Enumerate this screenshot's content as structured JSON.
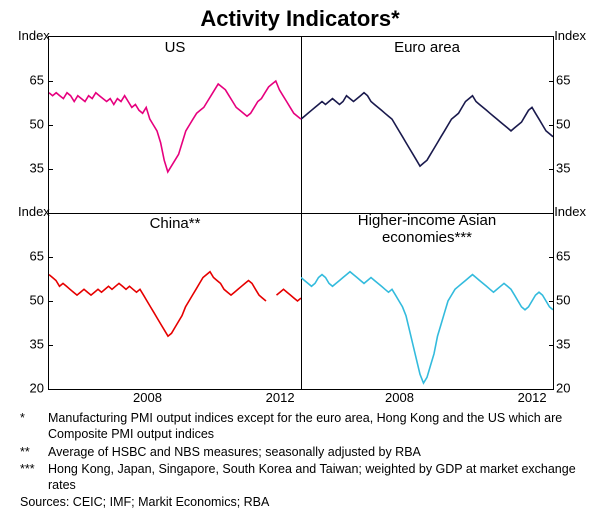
{
  "title": "Activity Indicators*",
  "axis_label": "Index",
  "panels": [
    {
      "key": "us",
      "title": "US",
      "pos": "tl",
      "color": "#e6007e",
      "data": [
        61,
        60,
        61,
        60,
        59,
        61,
        60,
        58,
        60,
        59,
        58,
        60,
        59,
        61,
        60,
        59,
        58,
        59,
        57,
        59,
        58,
        60,
        58,
        56,
        57,
        55,
        54,
        56,
        52,
        50,
        48,
        44,
        38,
        34,
        36,
        38,
        40,
        44,
        48,
        50,
        52,
        54,
        55,
        56,
        58,
        60,
        62,
        64,
        63,
        62,
        60,
        58,
        56,
        55,
        54,
        53,
        54,
        56,
        58,
        59,
        61,
        63,
        64,
        65,
        62,
        60,
        58,
        56,
        54,
        53,
        52
      ]
    },
    {
      "key": "euro",
      "title": "Euro area",
      "pos": "tr",
      "color": "#1a1a4d",
      "data": [
        52,
        53,
        54,
        55,
        56,
        57,
        58,
        57,
        58,
        59,
        58,
        57,
        58,
        60,
        59,
        58,
        59,
        60,
        61,
        60,
        58,
        57,
        56,
        55,
        54,
        53,
        52,
        50,
        48,
        46,
        44,
        42,
        40,
        38,
        36,
        37,
        38,
        40,
        42,
        44,
        46,
        48,
        50,
        52,
        53,
        54,
        56,
        58,
        59,
        60,
        58,
        57,
        56,
        55,
        54,
        53,
        52,
        51,
        50,
        49,
        48,
        49,
        50,
        51,
        53,
        55,
        56,
        54,
        52,
        50,
        48,
        47,
        46
      ]
    },
    {
      "key": "china",
      "title": "China**",
      "pos": "bl",
      "color": "#e60000",
      "data": [
        59,
        58,
        57,
        55,
        56,
        55,
        54,
        53,
        52,
        53,
        54,
        53,
        52,
        53,
        54,
        53,
        54,
        55,
        54,
        55,
        56,
        55,
        54,
        55,
        54,
        53,
        54,
        52,
        50,
        48,
        46,
        44,
        42,
        40,
        38,
        39,
        41,
        43,
        45,
        48,
        50,
        52,
        54,
        56,
        58,
        59,
        60,
        58,
        57,
        56,
        54,
        53,
        52,
        53,
        54,
        55,
        56,
        57,
        56,
        54,
        52,
        51,
        50,
        null,
        null,
        52,
        53,
        54,
        53,
        52,
        51,
        50,
        51
      ]
    },
    {
      "key": "asia",
      "title": "Higher-income Asian\neconomies***",
      "pos": "br",
      "color": "#33bbdd",
      "data": [
        58,
        57,
        56,
        55,
        56,
        58,
        59,
        58,
        56,
        55,
        56,
        57,
        58,
        59,
        60,
        59,
        58,
        57,
        56,
        57,
        58,
        57,
        56,
        55,
        54,
        53,
        54,
        52,
        50,
        48,
        45,
        40,
        35,
        30,
        25,
        22,
        24,
        28,
        32,
        38,
        42,
        46,
        50,
        52,
        54,
        55,
        56,
        57,
        58,
        59,
        58,
        57,
        56,
        55,
        54,
        53,
        54,
        55,
        56,
        55,
        54,
        52,
        50,
        48,
        47,
        48,
        50,
        52,
        53,
        52,
        50,
        48,
        47
      ]
    }
  ],
  "yticks_top": [
    {
      "v": 65,
      "l": "65"
    },
    {
      "v": 50,
      "l": "50"
    },
    {
      "v": 35,
      "l": "35"
    }
  ],
  "yticks_bot": [
    {
      "v": 65,
      "l": "65"
    },
    {
      "v": 50,
      "l": "50"
    },
    {
      "v": 35,
      "l": "35"
    },
    {
      "v": 20,
      "l": "20"
    }
  ],
  "ylim": [
    20,
    80
  ],
  "xticks": [
    {
      "v": 2008,
      "l": "2008"
    },
    {
      "v": 2012,
      "l": "2012"
    }
  ],
  "xlim": [
    2005,
    2012.6
  ],
  "footnotes": [
    {
      "m": "*",
      "t": "Manufacturing PMI output indices except for the euro area, Hong Kong and the US which are Composite PMI output indices"
    },
    {
      "m": "**",
      "t": "Average of HSBC and NBS measures; seasonally adjusted by RBA"
    },
    {
      "m": "***",
      "t": "Hong Kong, Japan, Singapore, South Korea and Taiwan; weighted by GDP at market exchange rates"
    }
  ],
  "sources": "Sources: CEIC; IMF; Markit Economics; RBA"
}
